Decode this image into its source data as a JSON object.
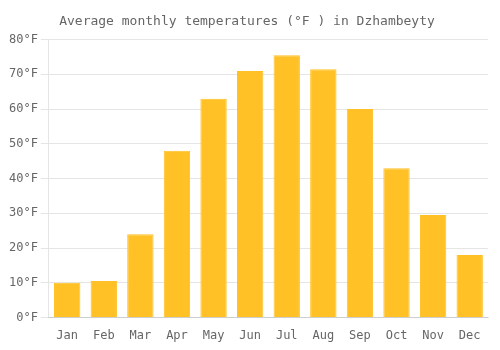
{
  "chart_data": {
    "type": "bar",
    "title": "Average monthly temperatures (°F ) in Dzhambeyty",
    "categories": [
      "Jan",
      "Feb",
      "Mar",
      "Apr",
      "May",
      "Jun",
      "Jul",
      "Aug",
      "Sep",
      "Oct",
      "Nov",
      "Dec"
    ],
    "values": [
      10,
      10.5,
      24,
      48,
      63,
      71,
      75.5,
      71.5,
      60,
      43,
      29.5,
      18
    ],
    "color": "#FFC125",
    "ylim": [
      0,
      80
    ],
    "yticks": [
      {
        "value": 0,
        "label": "0°F"
      },
      {
        "value": 10,
        "label": "10°F"
      },
      {
        "value": 20,
        "label": "20°F"
      },
      {
        "value": 30,
        "label": "30°F"
      },
      {
        "value": 40,
        "label": "40°F"
      },
      {
        "value": 50,
        "label": "50°F"
      },
      {
        "value": 60,
        "label": "60°F"
      },
      {
        "value": 70,
        "label": "70°F"
      },
      {
        "value": 80,
        "label": "80°F"
      }
    ],
    "grid": true
  }
}
